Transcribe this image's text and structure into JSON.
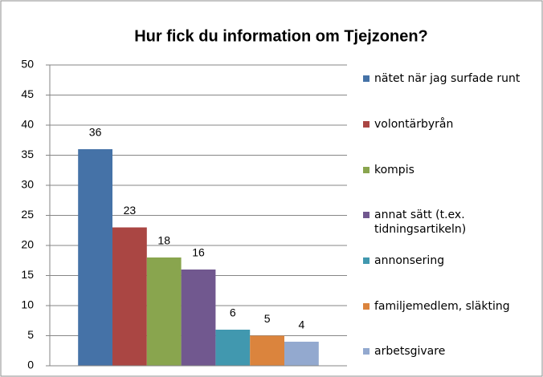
{
  "chart_data": {
    "type": "bar",
    "title": "Hur fick du information om Tjejzonen?",
    "categories": [
      null
    ],
    "series": [
      {
        "name": "nätet när jag surfade runt",
        "color": "#4572a7",
        "values": [
          36
        ]
      },
      {
        "name": "volontärbyrån",
        "color": "#aa4643",
        "values": [
          23
        ]
      },
      {
        "name": "kompis",
        "color": "#89a54e",
        "values": [
          18
        ]
      },
      {
        "name": "annat sätt (t.ex. tidningsartikeln)",
        "color": "#71588f",
        "values": [
          16
        ]
      },
      {
        "name": "annonsering",
        "color": "#4198af",
        "values": [
          6
        ]
      },
      {
        "name": "familjemedlem, släkting",
        "color": "#db843d",
        "values": [
          5
        ]
      },
      {
        "name": "arbetsgivare",
        "color": "#93a9cf",
        "values": [
          4
        ]
      }
    ],
    "ylim": [
      0,
      50
    ],
    "yticks": [
      0,
      5,
      10,
      15,
      20,
      25,
      30,
      35,
      40,
      45,
      50
    ],
    "grid": true,
    "legend": "right",
    "data_labels": true
  }
}
